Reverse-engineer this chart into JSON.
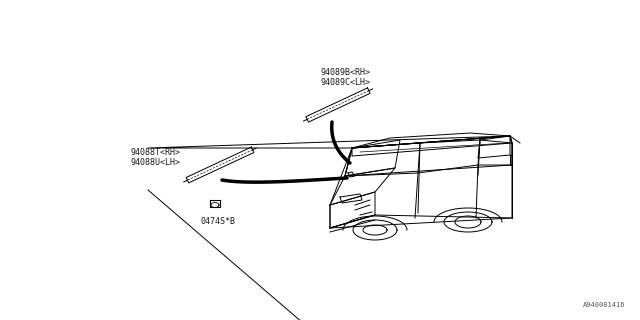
{
  "background_color": "#ffffff",
  "fig_width": 6.4,
  "fig_height": 3.2,
  "dpi": 100,
  "label_94089B": "94089B<RH>",
  "label_94089C": "94089C<LH>",
  "label_94088T": "94088T<RH>",
  "label_94088U": "94088U<LH>",
  "label_bolt": "0474S*B",
  "watermark": "A940001416",
  "line_color": "#000000",
  "text_color": "#1a1a1a",
  "font_size": 6.0,
  "part_strip_color": "#333333"
}
